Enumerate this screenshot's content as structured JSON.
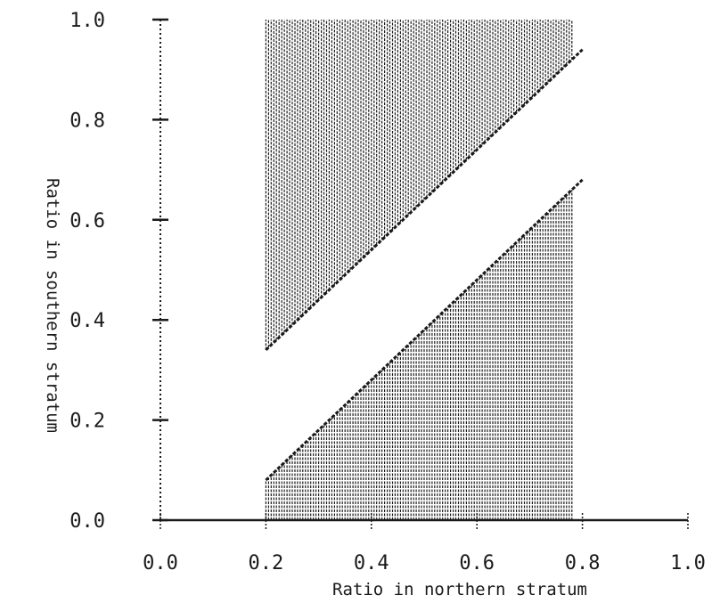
{
  "chart_data": {
    "type": "area",
    "title": "",
    "xlabel": "Ratio in northern stratum",
    "ylabel": "Ratio in southern stratum",
    "xlim": [
      0.0,
      1.0
    ],
    "ylim": [
      0.0,
      1.0
    ],
    "x_ticks": [
      "0.0",
      "0.2",
      "0.4",
      "0.6",
      "0.8",
      "1.0"
    ],
    "y_ticks": [
      "0.0",
      "0.2",
      "0.4",
      "0.6",
      "0.8",
      "1.0"
    ],
    "grid": false,
    "legend": "none",
    "regions": [
      {
        "fill": "vertical-hatch",
        "x_range": [
          0.2,
          0.78
        ],
        "lower_boundary": {
          "x": [
            0.2,
            0.8
          ],
          "y": [
            0.34,
            0.94
          ]
        },
        "upper_boundary": {
          "x": [
            0.2,
            0.78
          ],
          "y": [
            1.0,
            1.0
          ]
        }
      },
      {
        "fill": "vertical-hatch",
        "x_range": [
          0.2,
          0.78
        ],
        "lower_boundary": {
          "x": [
            0.2,
            0.78
          ],
          "y": [
            0.0,
            0.0
          ]
        },
        "upper_boundary": {
          "x": [
            0.2,
            0.8
          ],
          "y": [
            0.08,
            0.68
          ]
        }
      }
    ],
    "colors": {
      "ink": "#1a1a1a",
      "background": "#ffffff"
    }
  }
}
